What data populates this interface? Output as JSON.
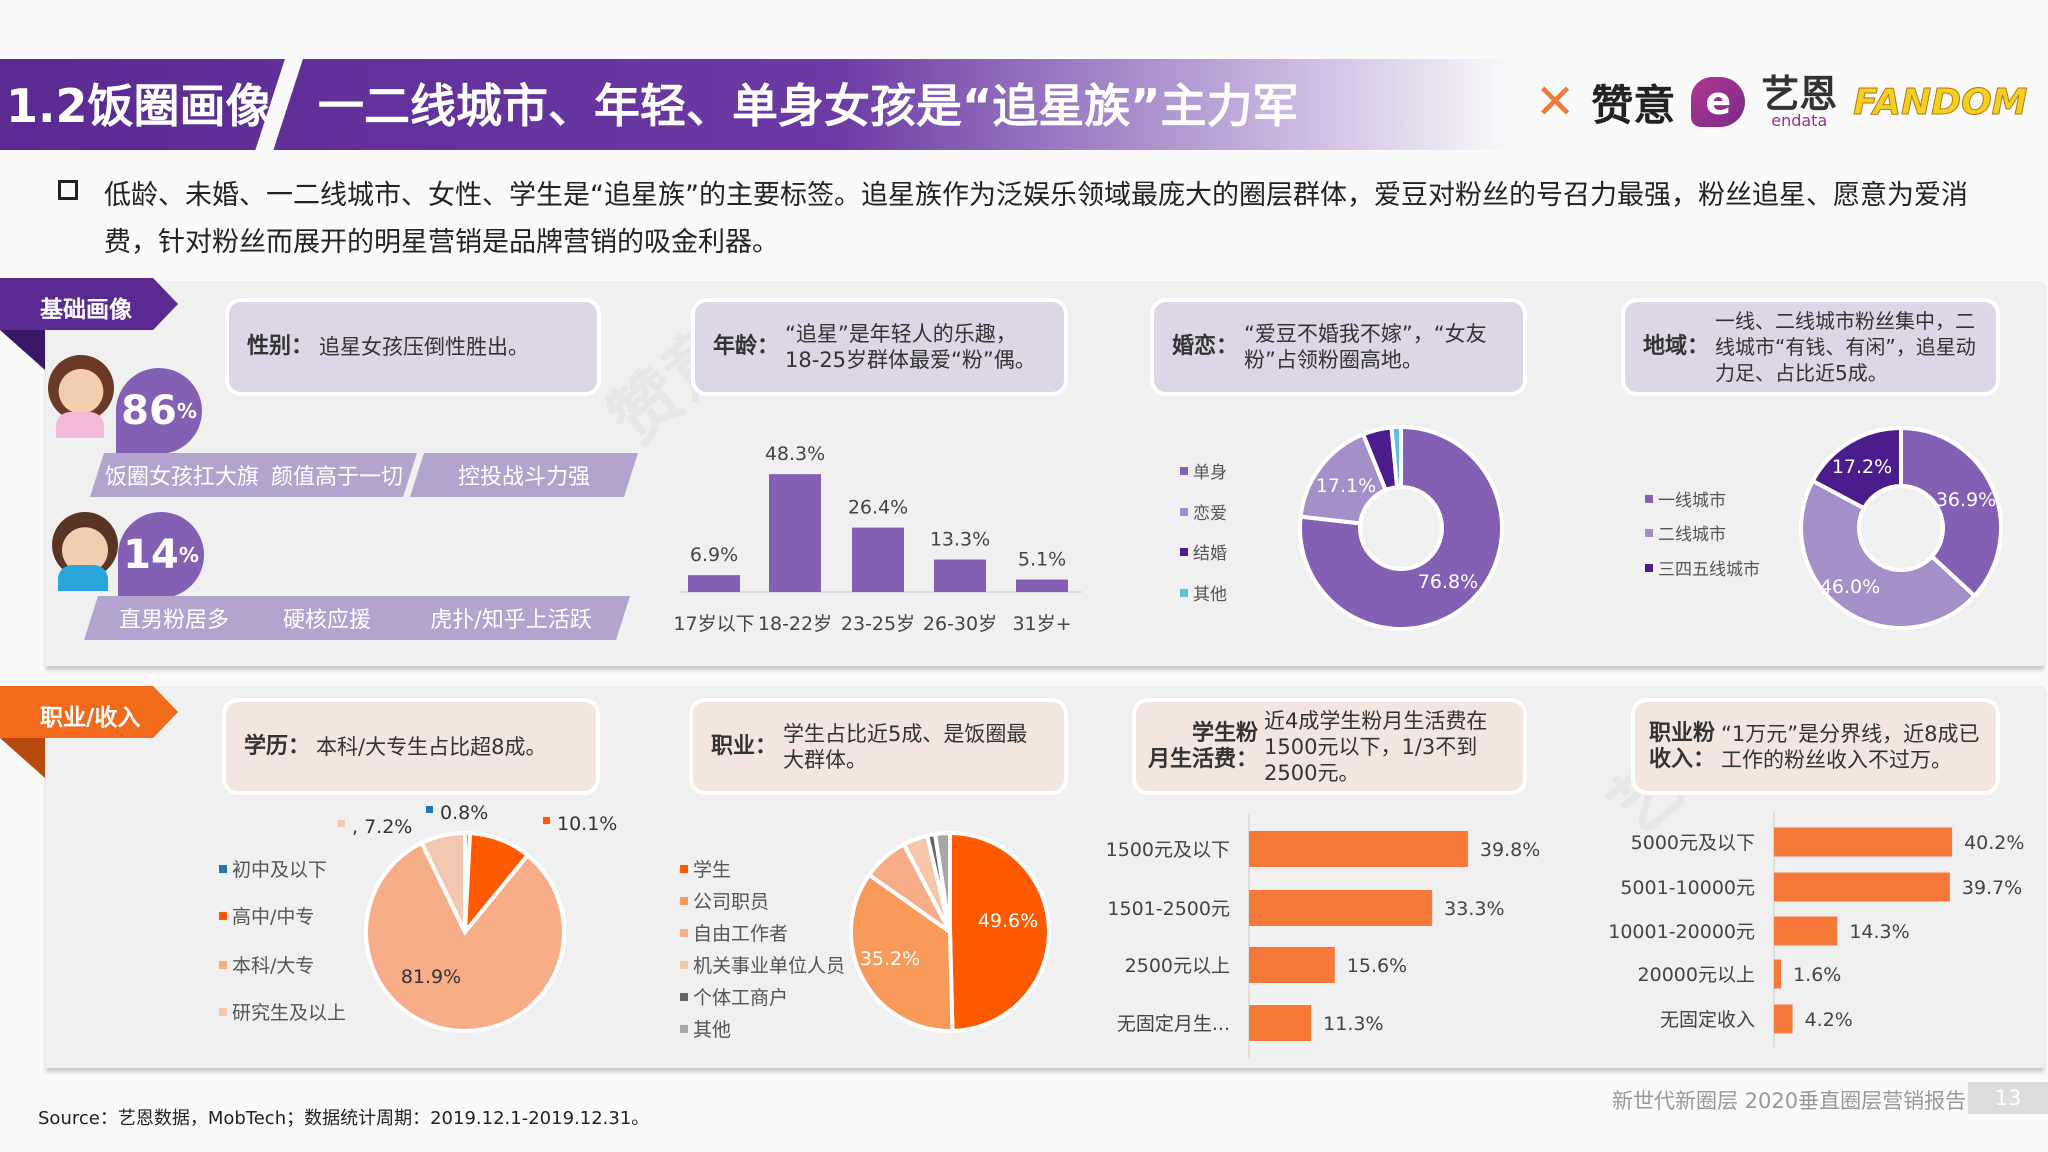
{
  "header": {
    "section": "1.2饭圈画像",
    "title": "一二线城市、年轻、单身女孩是“追星族”主力军",
    "logos": {
      "goodidea": "赞意",
      "endata_cn": "艺恩",
      "endata_en": "endata",
      "fandom": "FANDOM"
    }
  },
  "intro": "低龄、未婚、一二线城市、女性、学生是“追星族”的主要标签。追星族作为泛娱乐领域最庞大的圈层群体，爱豆对粉丝的号召力最强，粉丝追星、愿意为爱消费，针对粉丝而展开的明星营销是品牌营销的吸金利器。",
  "basic": {
    "ribbon": "基础画像",
    "gender": {
      "label": "性别：",
      "text": "追星女孩压倒性胜出。",
      "female": {
        "pct": "86",
        "unit": "%",
        "tags": [
          "饭圈女孩扛大旗",
          "颜值高于一切",
          "控投战斗力强"
        ]
      },
      "male": {
        "pct": "14",
        "unit": "%",
        "tags": [
          "直男粉居多",
          "硬核应援",
          "虎扑/知乎上活跃"
        ]
      }
    },
    "age": {
      "label": "年龄：",
      "text": "“追星”是年轻人的乐趣，18-25岁群体最爱“粉”偶。"
    },
    "marriage": {
      "label": "婚恋：",
      "text": "“爱豆不婚我不嫁”，“女友粉”占领粉圈高地。"
    },
    "region": {
      "label": "地域：",
      "text": "一线、二线城市粉丝集中，二线城市“有钱、有闲”，追星动力足、占比近5成。"
    }
  },
  "income_section": {
    "ribbon": "职业/收入",
    "education": {
      "label": "学历：",
      "text": "本科/大专生占比超8成。"
    },
    "occupation": {
      "label": "职业：",
      "text": "学生占比近5成、是饭圈最大群体。"
    },
    "living": {
      "label1": "学生粉",
      "label2": "月生活费：",
      "text": "近4成学生粉月生活费在1500元以下，1/3不到2500元。"
    },
    "income": {
      "label1": "职业粉",
      "label2": "收入：",
      "text": "“1万元”是分界线，近8成已工作的粉丝收入不过万。"
    }
  },
  "chart_data": [
    {
      "id": "age",
      "type": "bar",
      "categories": [
        "17岁以下",
        "18-22岁",
        "23-25岁",
        "26-30岁",
        "31岁+"
      ],
      "values": [
        6.9,
        48.3,
        26.4,
        13.3,
        5.1
      ],
      "labels": [
        "6.9%",
        "48.3%",
        "26.4%",
        "13.3%",
        "5.1%"
      ],
      "color": "#8460b5"
    },
    {
      "id": "marriage",
      "type": "pie",
      "donut": true,
      "categories": [
        "单身",
        "恋爱",
        "结婚",
        "其他"
      ],
      "values": [
        76.8,
        17.1,
        4.6,
        1.5
      ],
      "labels": [
        "76.8%",
        "17.1%",
        "",
        ""
      ],
      "colors": [
        "#8460b5",
        "#a58fc9",
        "#4b1c8c",
        "#5bc0de"
      ]
    },
    {
      "id": "region",
      "type": "pie",
      "donut": true,
      "categories": [
        "一线城市",
        "二线城市",
        "三四五线城市"
      ],
      "values": [
        36.9,
        46.0,
        17.2
      ],
      "labels": [
        "36.9%",
        "46.0%",
        "17.2%"
      ],
      "colors": [
        "#8460b5",
        "#a58fc9",
        "#4b1c8c"
      ]
    },
    {
      "id": "education",
      "type": "pie",
      "categories": [
        "初中及以下",
        "高中/中专",
        "本科/大专",
        "研究生及以上"
      ],
      "values": [
        0.8,
        10.1,
        81.9,
        7.2
      ],
      "labels": [
        "0.8%",
        "10.1%",
        "81.9%",
        ", 7.2%"
      ],
      "colors": [
        "#1f77b4",
        "#ff5a00",
        "#f7ae88",
        "#f4c8b0"
      ]
    },
    {
      "id": "occupation",
      "type": "pie",
      "categories": [
        "学生",
        "公司职员",
        "自由工作者",
        "机关事业单位人员",
        "个体工商户",
        "其他"
      ],
      "values": [
        49.6,
        35.2,
        7.5,
        4.0,
        1.3,
        2.4
      ],
      "labels": [
        "49.6%",
        "35.2%",
        "",
        "",
        "",
        ""
      ],
      "colors": [
        "#ff5a00",
        "#f79a5a",
        "#f7ae88",
        "#f6c6a8",
        "#666666",
        "#a6a6a6"
      ]
    },
    {
      "id": "living",
      "type": "bar",
      "orientation": "horizontal",
      "categories": [
        "1500元及以下",
        "1501-2500元",
        "2500元以上",
        "无固定月生..."
      ],
      "values": [
        39.8,
        33.3,
        15.6,
        11.3
      ],
      "labels": [
        "39.8%",
        "33.3%",
        "15.6%",
        "11.3%"
      ],
      "color": "#f7793a"
    },
    {
      "id": "income",
      "type": "bar",
      "orientation": "horizontal",
      "categories": [
        "5000元及以下",
        "5001-10000元",
        "10001-20000元",
        "20000元以上",
        "无固定收入"
      ],
      "values": [
        40.2,
        39.7,
        14.3,
        1.6,
        4.2
      ],
      "labels": [
        "40.2%",
        "39.7%",
        "14.3%",
        "1.6%",
        "4.2%"
      ],
      "color": "#f7793a"
    }
  ],
  "source": "Source：艺恩数据，MobTech；数据统计周期：2019.12.1-2019.12.31。",
  "footer": {
    "report": "新世代新圈层 2020垂直圈层营销报告",
    "page": "13"
  }
}
